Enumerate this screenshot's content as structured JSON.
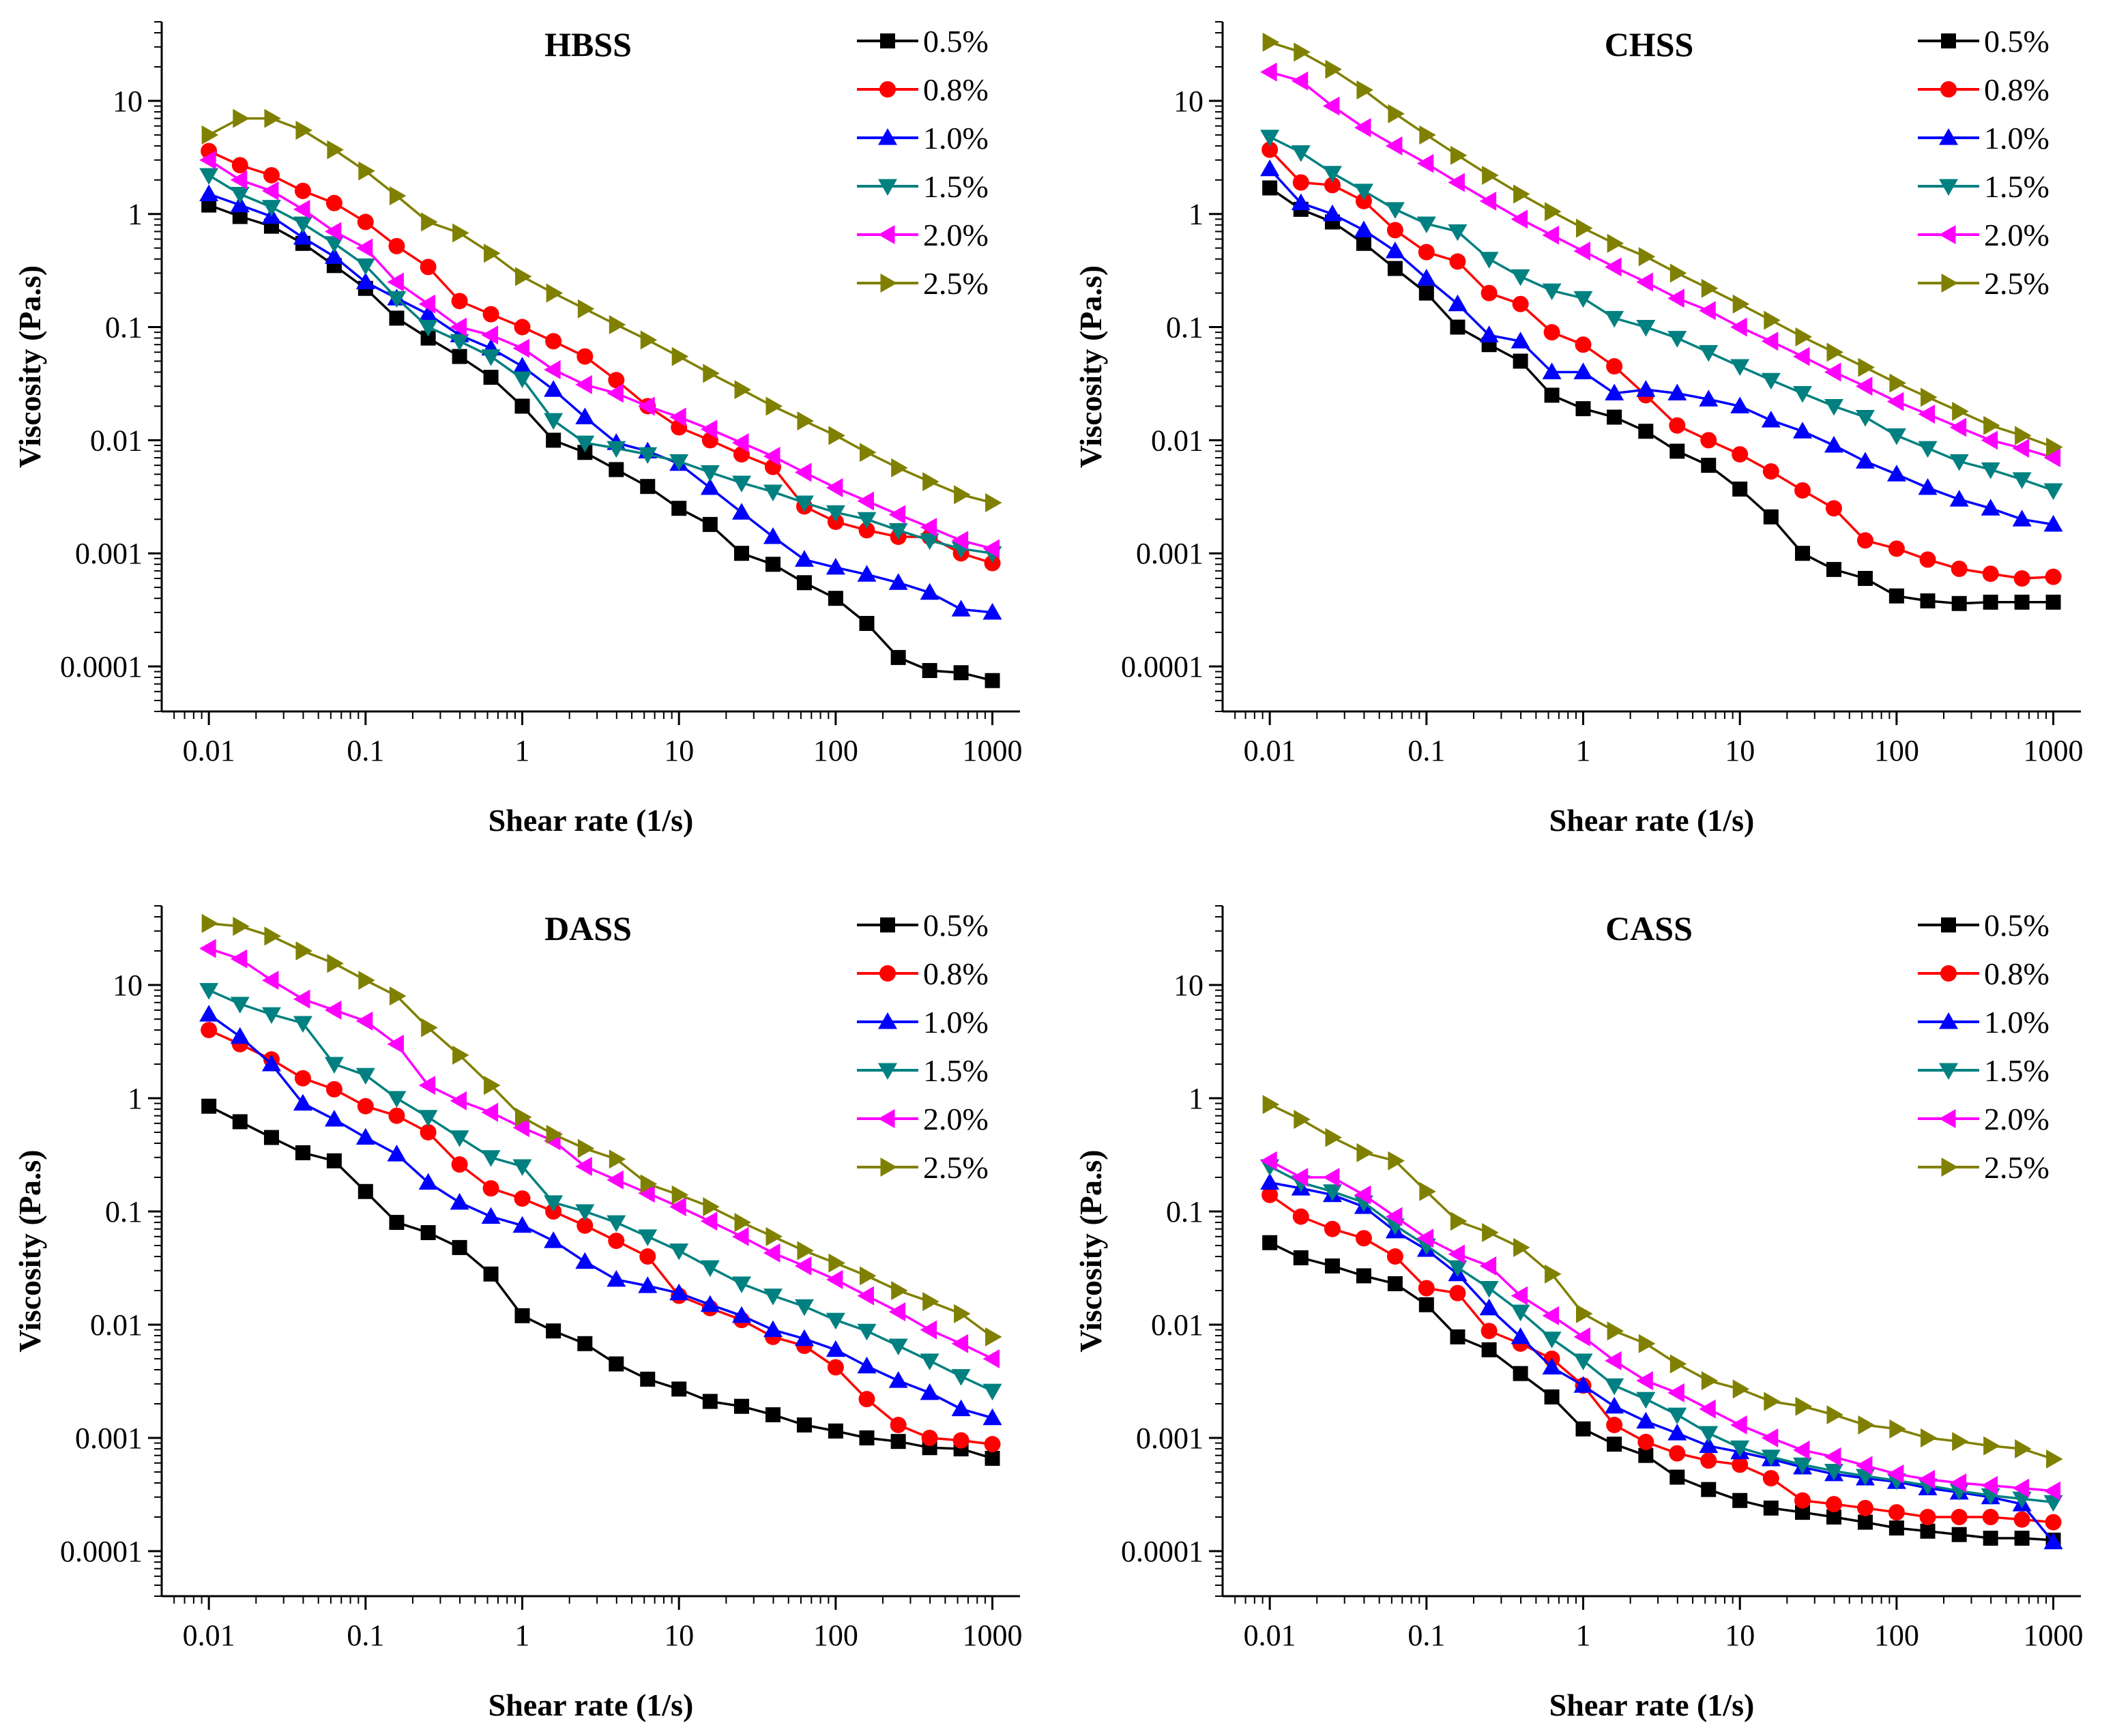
{
  "figure": {
    "x_label": "Shear rate (1/s)",
    "y_label": "Viscosity (Pa.s)",
    "x_tick_labels": [
      "0.01",
      "0.1",
      "1",
      "10",
      "100",
      "1000"
    ],
    "y_tick_labels": [
      "0.0001",
      "0.001",
      "0.01",
      "0.1",
      "1",
      "10"
    ],
    "legend_labels": [
      "0.5%",
      "0.8%",
      "1.0%",
      "1.5%",
      "2.0%",
      "2.5%"
    ],
    "series_colors": [
      "#000000",
      "#ff0000",
      "#0000ff",
      "#008080",
      "#ff00ff",
      "#808000"
    ],
    "series_markers": [
      "square",
      "circle",
      "triangle-up",
      "triangle-down",
      "triangle-left",
      "triangle-right"
    ]
  },
  "chart_data": [
    {
      "type": "line",
      "title": "HBSS",
      "xlabel": "Shear rate (1/s)",
      "ylabel": "Viscosity (Pa.s)",
      "x_scale": "log",
      "y_scale": "log",
      "xlim": [
        0.005,
        1500
      ],
      "ylim": [
        4e-05,
        50
      ],
      "x": [
        0.01,
        0.0158,
        0.0251,
        0.0398,
        0.0631,
        0.1,
        0.158,
        0.251,
        0.398,
        0.631,
        1,
        1.58,
        2.51,
        3.98,
        6.31,
        10,
        15.8,
        25.1,
        39.8,
        63.1,
        100,
        158,
        251,
        398,
        631,
        1000
      ],
      "series": [
        {
          "name": "0.5%",
          "values": [
            1.2,
            0.95,
            0.78,
            0.55,
            0.35,
            0.22,
            0.12,
            0.08,
            0.055,
            0.036,
            0.02,
            0.01,
            0.0078,
            0.0055,
            0.0039,
            0.0025,
            0.0018,
            0.001,
            0.0008,
            0.00055,
            0.0004,
            0.00024,
            0.00012,
            9.2e-05,
            8.8e-05,
            7.5e-05
          ]
        },
        {
          "name": "0.8%",
          "values": [
            3.6,
            2.7,
            2.2,
            1.6,
            1.25,
            0.85,
            0.52,
            0.34,
            0.17,
            0.13,
            0.1,
            0.075,
            0.055,
            0.034,
            0.02,
            0.013,
            0.01,
            0.0075,
            0.0058,
            0.0026,
            0.0019,
            0.0016,
            0.0014,
            0.0014,
            0.001,
            0.00082
          ]
        },
        {
          "name": "1.0%",
          "values": [
            1.5,
            1.2,
            0.95,
            0.62,
            0.42,
            0.25,
            0.18,
            0.13,
            0.085,
            0.065,
            0.045,
            0.028,
            0.016,
            0.0095,
            0.008,
            0.0062,
            0.0038,
            0.0023,
            0.0014,
            0.00088,
            0.00075,
            0.00065,
            0.00055,
            0.00045,
            0.00032,
            0.0003
          ]
        },
        {
          "name": "1.5%",
          "values": [
            2.2,
            1.5,
            1.15,
            0.82,
            0.55,
            0.35,
            0.18,
            0.1,
            0.075,
            0.055,
            0.035,
            0.015,
            0.0095,
            0.0085,
            0.0075,
            0.0065,
            0.0052,
            0.0042,
            0.0035,
            0.0028,
            0.0023,
            0.002,
            0.0016,
            0.0013,
            0.0011,
            0.001
          ]
        },
        {
          "name": "2.0%",
          "values": [
            3.0,
            2.0,
            1.6,
            1.1,
            0.7,
            0.5,
            0.25,
            0.16,
            0.1,
            0.085,
            0.065,
            0.042,
            0.031,
            0.026,
            0.02,
            0.016,
            0.0125,
            0.0095,
            0.0072,
            0.0052,
            0.0038,
            0.0029,
            0.0022,
            0.0017,
            0.0013,
            0.0011
          ]
        },
        {
          "name": "2.5%",
          "values": [
            5.0,
            7.0,
            7.0,
            5.5,
            3.7,
            2.4,
            1.45,
            0.85,
            0.68,
            0.45,
            0.28,
            0.2,
            0.145,
            0.105,
            0.077,
            0.055,
            0.039,
            0.028,
            0.02,
            0.0148,
            0.011,
            0.0078,
            0.0057,
            0.0043,
            0.0033,
            0.0028
          ]
        }
      ]
    },
    {
      "type": "line",
      "title": "CHSS",
      "xlabel": "Shear rate (1/s)",
      "ylabel": "Viscosity (Pa.s)",
      "x_scale": "log",
      "y_scale": "log",
      "xlim": [
        0.005,
        1500
      ],
      "ylim": [
        4e-05,
        50
      ],
      "x": [
        0.01,
        0.0158,
        0.0251,
        0.0398,
        0.0631,
        0.1,
        0.158,
        0.251,
        0.398,
        0.631,
        1,
        1.58,
        2.51,
        3.98,
        6.31,
        10,
        15.8,
        25.1,
        39.8,
        63.1,
        100,
        158,
        251,
        398,
        631,
        1000
      ],
      "series": [
        {
          "name": "0.5%",
          "values": [
            1.7,
            1.1,
            0.85,
            0.55,
            0.33,
            0.2,
            0.1,
            0.07,
            0.05,
            0.025,
            0.019,
            0.016,
            0.012,
            0.008,
            0.006,
            0.0037,
            0.0021,
            0.001,
            0.00072,
            0.0006,
            0.00042,
            0.00038,
            0.00036,
            0.00037,
            0.00037,
            0.00037
          ]
        },
        {
          "name": "0.8%",
          "values": [
            3.7,
            1.9,
            1.8,
            1.3,
            0.72,
            0.46,
            0.38,
            0.2,
            0.16,
            0.09,
            0.07,
            0.045,
            0.025,
            0.0135,
            0.01,
            0.0075,
            0.0053,
            0.0036,
            0.0025,
            0.0013,
            0.0011,
            0.00088,
            0.00073,
            0.00066,
            0.0006,
            0.00062
          ]
        },
        {
          "name": "1.0%",
          "values": [
            2.5,
            1.25,
            1.0,
            0.72,
            0.47,
            0.27,
            0.16,
            0.085,
            0.075,
            0.04,
            0.04,
            0.026,
            0.028,
            0.026,
            0.023,
            0.02,
            0.015,
            0.012,
            0.009,
            0.0065,
            0.005,
            0.0038,
            0.003,
            0.0025,
            0.002,
            0.0018
          ]
        },
        {
          "name": "1.5%",
          "values": [
            4.8,
            3.5,
            2.3,
            1.6,
            1.1,
            0.82,
            0.7,
            0.4,
            0.28,
            0.21,
            0.18,
            0.12,
            0.1,
            0.08,
            0.06,
            0.045,
            0.034,
            0.026,
            0.02,
            0.016,
            0.011,
            0.0085,
            0.0065,
            0.0055,
            0.0045,
            0.0036
          ]
        },
        {
          "name": "2.0%",
          "values": [
            18,
            15,
            9.0,
            5.8,
            4.0,
            2.8,
            1.9,
            1.3,
            0.9,
            0.65,
            0.47,
            0.34,
            0.25,
            0.18,
            0.14,
            0.1,
            0.075,
            0.055,
            0.04,
            0.03,
            0.022,
            0.017,
            0.013,
            0.01,
            0.0085,
            0.007
          ]
        },
        {
          "name": "2.5%",
          "values": [
            33,
            27,
            19,
            12.5,
            7.7,
            5.0,
            3.3,
            2.2,
            1.5,
            1.05,
            0.75,
            0.55,
            0.42,
            0.3,
            0.22,
            0.16,
            0.115,
            0.082,
            0.06,
            0.044,
            0.032,
            0.024,
            0.018,
            0.0135,
            0.011,
            0.0087
          ]
        }
      ]
    },
    {
      "type": "line",
      "title": "DASS",
      "xlabel": "Shear rate (1/s)",
      "ylabel": "Viscosity (Pa.s)",
      "x_scale": "log",
      "y_scale": "log",
      "xlim": [
        0.005,
        1500
      ],
      "ylim": [
        4e-05,
        50
      ],
      "x": [
        0.01,
        0.0158,
        0.0251,
        0.0398,
        0.0631,
        0.1,
        0.158,
        0.251,
        0.398,
        0.631,
        1,
        1.58,
        2.51,
        3.98,
        6.31,
        10,
        15.8,
        25.1,
        39.8,
        63.1,
        100,
        158,
        251,
        398,
        631,
        1000
      ],
      "series": [
        {
          "name": "0.5%",
          "values": [
            0.85,
            0.62,
            0.45,
            0.33,
            0.28,
            0.15,
            0.08,
            0.065,
            0.048,
            0.028,
            0.012,
            0.0088,
            0.0068,
            0.0045,
            0.0033,
            0.0027,
            0.0021,
            0.0019,
            0.0016,
            0.0013,
            0.00115,
            0.001,
            0.00093,
            0.00082,
            0.0008,
            0.00066
          ]
        },
        {
          "name": "0.8%",
          "values": [
            4.0,
            3.0,
            2.2,
            1.5,
            1.2,
            0.85,
            0.7,
            0.5,
            0.26,
            0.16,
            0.13,
            0.1,
            0.075,
            0.055,
            0.04,
            0.018,
            0.014,
            0.011,
            0.0078,
            0.0065,
            0.0042,
            0.0022,
            0.0013,
            0.001,
            0.00095,
            0.00088
          ]
        },
        {
          "name": "1.0%",
          "values": [
            5.5,
            3.5,
            2.0,
            0.9,
            0.65,
            0.45,
            0.32,
            0.18,
            0.12,
            0.09,
            0.075,
            0.055,
            0.036,
            0.025,
            0.022,
            0.019,
            0.015,
            0.012,
            0.009,
            0.0075,
            0.006,
            0.0043,
            0.0032,
            0.0025,
            0.0018,
            0.0015
          ]
        },
        {
          "name": "1.5%",
          "values": [
            9.0,
            6.8,
            5.5,
            4.6,
            2.0,
            1.6,
            1.0,
            0.68,
            0.45,
            0.3,
            0.25,
            0.12,
            0.1,
            0.08,
            0.06,
            0.045,
            0.032,
            0.023,
            0.018,
            0.0145,
            0.011,
            0.0088,
            0.0065,
            0.0048,
            0.0035,
            0.0026
          ]
        },
        {
          "name": "2.0%",
          "values": [
            21,
            17,
            11,
            7.5,
            6.0,
            4.8,
            3.0,
            1.3,
            0.95,
            0.75,
            0.55,
            0.42,
            0.25,
            0.19,
            0.145,
            0.11,
            0.082,
            0.06,
            0.043,
            0.033,
            0.025,
            0.018,
            0.013,
            0.009,
            0.0068,
            0.005
          ]
        },
        {
          "name": "2.5%",
          "values": [
            35,
            33,
            27,
            20,
            15.5,
            11,
            8.0,
            4.2,
            2.4,
            1.3,
            0.68,
            0.48,
            0.36,
            0.29,
            0.175,
            0.14,
            0.11,
            0.08,
            0.06,
            0.045,
            0.035,
            0.027,
            0.02,
            0.016,
            0.0125,
            0.0078
          ]
        }
      ]
    },
    {
      "type": "line",
      "title": "CASS",
      "xlabel": "Shear rate (1/s)",
      "ylabel": "Viscosity (Pa.s)",
      "x_scale": "log",
      "y_scale": "log",
      "xlim": [
        0.005,
        1500
      ],
      "ylim": [
        4e-05,
        50
      ],
      "x": [
        0.01,
        0.0158,
        0.0251,
        0.0398,
        0.0631,
        0.1,
        0.158,
        0.251,
        0.398,
        0.631,
        1,
        1.58,
        2.51,
        3.98,
        6.31,
        10,
        15.8,
        25.1,
        39.8,
        63.1,
        100,
        158,
        251,
        398,
        631,
        1000
      ],
      "series": [
        {
          "name": "0.5%",
          "values": [
            0.053,
            0.039,
            0.033,
            0.027,
            0.023,
            0.015,
            0.0078,
            0.006,
            0.0037,
            0.0023,
            0.0012,
            0.00088,
            0.0007,
            0.00045,
            0.00035,
            0.00028,
            0.00024,
            0.00022,
            0.0002,
            0.00018,
            0.00016,
            0.00015,
            0.00014,
            0.00013,
            0.00013,
            0.000125
          ]
        },
        {
          "name": "0.8%",
          "values": [
            0.14,
            0.09,
            0.07,
            0.058,
            0.04,
            0.021,
            0.019,
            0.0088,
            0.0068,
            0.005,
            0.0029,
            0.0013,
            0.00092,
            0.00073,
            0.00063,
            0.00058,
            0.00044,
            0.00028,
            0.00026,
            0.00024,
            0.00022,
            0.0002,
            0.0002,
            0.0002,
            0.00019,
            0.00018
          ]
        },
        {
          "name": "1.0%",
          "values": [
            0.18,
            0.16,
            0.14,
            0.11,
            0.067,
            0.046,
            0.028,
            0.014,
            0.0078,
            0.0042,
            0.0029,
            0.0019,
            0.0014,
            0.0011,
            0.00085,
            0.00075,
            0.00065,
            0.00055,
            0.00048,
            0.00044,
            0.00041,
            0.00036,
            0.00033,
            0.0003,
            0.00026,
            0.00012
          ]
        },
        {
          "name": "1.5%",
          "values": [
            0.25,
            0.18,
            0.15,
            0.12,
            0.075,
            0.05,
            0.032,
            0.021,
            0.013,
            0.0075,
            0.0048,
            0.0029,
            0.0022,
            0.0016,
            0.0011,
            0.00082,
            0.00068,
            0.00058,
            0.00051,
            0.00046,
            0.00042,
            0.00038,
            0.00034,
            0.00031,
            0.00029,
            0.00027
          ]
        },
        {
          "name": "2.0%",
          "values": [
            0.28,
            0.2,
            0.2,
            0.14,
            0.09,
            0.058,
            0.042,
            0.033,
            0.018,
            0.012,
            0.0078,
            0.0048,
            0.0032,
            0.0025,
            0.0018,
            0.0013,
            0.001,
            0.00078,
            0.00068,
            0.00057,
            0.00048,
            0.00043,
            0.0004,
            0.00038,
            0.00036,
            0.00034
          ]
        },
        {
          "name": "2.5%",
          "values": [
            0.88,
            0.65,
            0.45,
            0.33,
            0.28,
            0.15,
            0.082,
            0.065,
            0.048,
            0.028,
            0.0125,
            0.0088,
            0.0068,
            0.0045,
            0.0032,
            0.0027,
            0.0021,
            0.0019,
            0.0016,
            0.0013,
            0.0012,
            0.001,
            0.00093,
            0.00085,
            0.0008,
            0.00065
          ]
        }
      ]
    }
  ]
}
